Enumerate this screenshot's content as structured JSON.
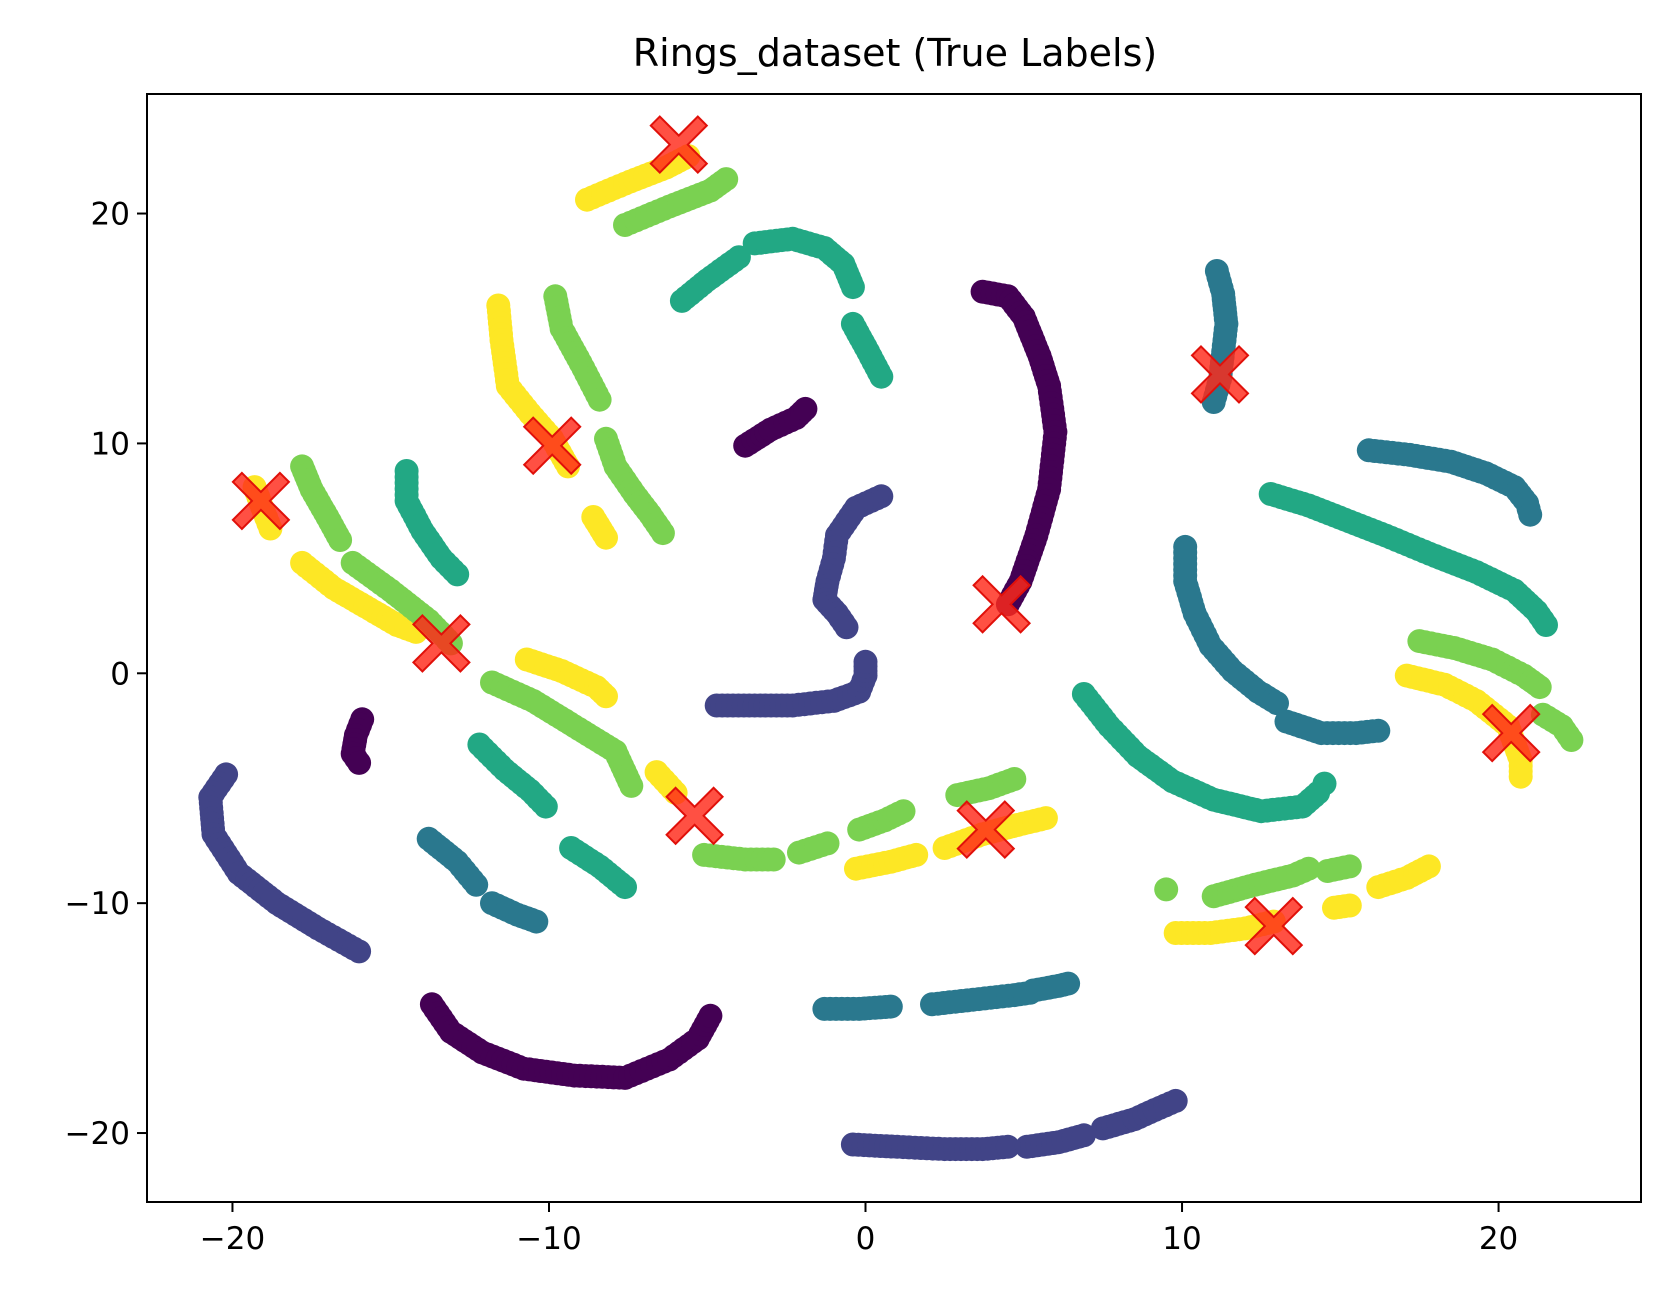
{
  "chart_data": {
    "type": "scatter",
    "title": "Rings_dataset (True Labels)",
    "xlabel": "",
    "ylabel": "",
    "xlim": [
      -22.7,
      24.5
    ],
    "ylim": [
      -23.0,
      25.2
    ],
    "xticks": [
      -20,
      -10,
      0,
      10,
      20
    ],
    "xtick_labels": [
      "−20",
      "−10",
      "0",
      "10",
      "20"
    ],
    "yticks": [
      -20,
      -10,
      0,
      10,
      20
    ],
    "ytick_labels": [
      "−20",
      "−10",
      "0",
      "10",
      "20"
    ],
    "grid": false,
    "legend": false,
    "class_colors": {
      "0": "#440154",
      "1": "#414487",
      "2": "#2a788e",
      "3": "#22a884",
      "4": "#7ad151",
      "5": "#fde725"
    },
    "center_marker": {
      "shape": "X",
      "color": "#ff2a1a"
    },
    "arcs": [
      {
        "class": 5,
        "points": [
          [
            -8.8,
            20.6
          ],
          [
            -7.6,
            21.3
          ],
          [
            -6.3,
            22.0
          ],
          [
            -5.6,
            22.5
          ]
        ]
      },
      {
        "class": 4,
        "points": [
          [
            -7.6,
            19.5
          ],
          [
            -6.2,
            20.3
          ],
          [
            -4.9,
            21.0
          ],
          [
            -4.4,
            21.5
          ]
        ]
      },
      {
        "class": 3,
        "points": [
          [
            -5.8,
            16.2
          ],
          [
            -5.0,
            17.1
          ],
          [
            -4.3,
            17.8
          ],
          [
            -4.0,
            18.1
          ]
        ]
      },
      {
        "class": 3,
        "points": [
          [
            -3.5,
            18.7
          ],
          [
            -2.3,
            18.9
          ],
          [
            -1.3,
            18.5
          ],
          [
            -0.7,
            17.8
          ],
          [
            -0.4,
            16.8
          ]
        ]
      },
      {
        "class": 3,
        "points": [
          [
            -0.4,
            15.2
          ],
          [
            0.0,
            14.2
          ],
          [
            0.5,
            12.9
          ]
        ]
      },
      {
        "class": 0,
        "points": [
          [
            -3.8,
            9.9
          ],
          [
            -3.0,
            10.6
          ],
          [
            -2.2,
            11.1
          ],
          [
            -1.9,
            11.5
          ]
        ]
      },
      {
        "class": 1,
        "points": [
          [
            0.5,
            7.7
          ],
          [
            -0.3,
            7.2
          ],
          [
            -0.9,
            6.0
          ],
          [
            -1.0,
            5.0
          ],
          [
            -1.2,
            4.0
          ],
          [
            -1.3,
            3.2
          ],
          [
            -0.9,
            2.6
          ],
          [
            -0.6,
            2.0
          ]
        ]
      },
      {
        "class": 1,
        "points": [
          [
            -4.7,
            -1.4
          ],
          [
            -3.5,
            -1.4
          ],
          [
            -2.3,
            -1.4
          ],
          [
            -1.0,
            -1.2
          ],
          [
            -0.2,
            -0.8
          ],
          [
            0.0,
            -0.1
          ],
          [
            0.0,
            0.5
          ]
        ]
      },
      {
        "class": 0,
        "points": [
          [
            3.7,
            16.6
          ],
          [
            4.5,
            16.4
          ],
          [
            5.0,
            15.5
          ],
          [
            5.5,
            13.8
          ],
          [
            5.8,
            12.5
          ],
          [
            6.0,
            10.5
          ],
          [
            5.8,
            8.0
          ],
          [
            5.4,
            6.0
          ],
          [
            4.9,
            4.0
          ],
          [
            4.5,
            3.0
          ]
        ]
      },
      {
        "class": 2,
        "points": [
          [
            11.1,
            17.5
          ],
          [
            11.3,
            16.5
          ],
          [
            11.4,
            15.2
          ],
          [
            11.3,
            14.0
          ],
          [
            11.2,
            12.8
          ],
          [
            11.0,
            11.8
          ]
        ]
      },
      {
        "class": 2,
        "points": [
          [
            15.9,
            9.7
          ],
          [
            17.2,
            9.5
          ],
          [
            18.5,
            9.2
          ],
          [
            19.6,
            8.7
          ],
          [
            20.5,
            8.1
          ],
          [
            20.9,
            7.4
          ],
          [
            21.0,
            6.9
          ]
        ]
      },
      {
        "class": 3,
        "points": [
          [
            12.8,
            7.8
          ],
          [
            14.0,
            7.3
          ],
          [
            15.3,
            6.6
          ],
          [
            16.6,
            5.9
          ],
          [
            18.0,
            5.1
          ],
          [
            19.3,
            4.4
          ],
          [
            20.5,
            3.6
          ],
          [
            21.2,
            2.7
          ],
          [
            21.5,
            2.1
          ]
        ]
      },
      {
        "class": 2,
        "points": [
          [
            10.1,
            5.5
          ],
          [
            10.1,
            4.0
          ],
          [
            10.4,
            2.6
          ],
          [
            10.9,
            1.2
          ],
          [
            11.6,
            0.1
          ],
          [
            12.4,
            -0.8
          ],
          [
            13.0,
            -1.3
          ]
        ]
      },
      {
        "class": 2,
        "points": [
          [
            13.3,
            -2.1
          ],
          [
            14.4,
            -2.6
          ],
          [
            15.5,
            -2.6
          ],
          [
            16.2,
            -2.5
          ]
        ]
      },
      {
        "class": 4,
        "points": [
          [
            17.5,
            1.4
          ],
          [
            18.6,
            1.1
          ],
          [
            19.8,
            0.6
          ],
          [
            20.8,
            -0.1
          ],
          [
            21.3,
            -0.6
          ]
        ]
      },
      {
        "class": 5,
        "points": [
          [
            17.1,
            -0.1
          ],
          [
            18.3,
            -0.5
          ],
          [
            19.3,
            -1.2
          ],
          [
            20.3,
            -2.3
          ],
          [
            20.7,
            -3.8
          ],
          [
            20.7,
            -4.5
          ]
        ]
      },
      {
        "class": 4,
        "points": [
          [
            21.4,
            -1.8
          ],
          [
            22.0,
            -2.3
          ],
          [
            22.3,
            -2.9
          ]
        ]
      },
      {
        "class": 3,
        "points": [
          [
            6.9,
            -0.9
          ],
          [
            7.7,
            -2.3
          ],
          [
            8.6,
            -3.6
          ],
          [
            9.7,
            -4.7
          ],
          [
            11.0,
            -5.5
          ],
          [
            12.5,
            -6.0
          ],
          [
            13.8,
            -5.8
          ],
          [
            14.3,
            -5.2
          ]
        ]
      },
      {
        "class": 3,
        "points": [
          [
            14.5,
            -4.8
          ]
        ]
      },
      {
        "class": 4,
        "points": [
          [
            9.5,
            -9.4
          ]
        ]
      },
      {
        "class": 4,
        "points": [
          [
            11.0,
            -9.7
          ],
          [
            12.3,
            -9.2
          ],
          [
            13.5,
            -8.8
          ],
          [
            14.0,
            -8.5
          ]
        ]
      },
      {
        "class": 4,
        "points": [
          [
            14.6,
            -8.6
          ],
          [
            15.3,
            -8.4
          ]
        ]
      },
      {
        "class": 5,
        "points": [
          [
            15.3,
            -10.1
          ],
          [
            14.8,
            -10.2
          ]
        ]
      },
      {
        "class": 5,
        "points": [
          [
            16.2,
            -9.3
          ],
          [
            17.1,
            -8.9
          ],
          [
            17.8,
            -8.4
          ]
        ]
      },
      {
        "class": 5,
        "points": [
          [
            9.8,
            -11.3
          ],
          [
            10.9,
            -11.3
          ],
          [
            12.0,
            -11.1
          ],
          [
            12.9,
            -10.8
          ]
        ]
      },
      {
        "class": 2,
        "points": [
          [
            -1.3,
            -14.6
          ],
          [
            -0.2,
            -14.6
          ],
          [
            0.8,
            -14.5
          ]
        ]
      },
      {
        "class": 2,
        "points": [
          [
            2.1,
            -14.4
          ],
          [
            3.4,
            -14.2
          ],
          [
            4.7,
            -14.0
          ],
          [
            5.2,
            -13.9
          ]
        ]
      },
      {
        "class": 2,
        "points": [
          [
            5.3,
            -13.8
          ],
          [
            6.1,
            -13.6
          ],
          [
            6.4,
            -13.5
          ]
        ]
      },
      {
        "class": 1,
        "points": [
          [
            -0.4,
            -20.5
          ],
          [
            1.0,
            -20.6
          ],
          [
            2.5,
            -20.7
          ],
          [
            3.7,
            -20.7
          ],
          [
            4.5,
            -20.6
          ]
        ]
      },
      {
        "class": 1,
        "points": [
          [
            5.1,
            -20.6
          ],
          [
            6.1,
            -20.4
          ],
          [
            6.9,
            -20.1
          ]
        ]
      },
      {
        "class": 1,
        "points": [
          [
            7.5,
            -19.8
          ],
          [
            8.5,
            -19.4
          ],
          [
            9.3,
            -18.9
          ],
          [
            9.8,
            -18.6
          ]
        ]
      },
      {
        "class": 0,
        "points": [
          [
            -13.7,
            -14.4
          ],
          [
            -13.1,
            -15.6
          ],
          [
            -12.1,
            -16.5
          ],
          [
            -10.8,
            -17.2
          ],
          [
            -9.2,
            -17.5
          ],
          [
            -7.6,
            -17.6
          ],
          [
            -6.2,
            -16.8
          ],
          [
            -5.3,
            -15.9
          ],
          [
            -4.9,
            -14.9
          ]
        ]
      },
      {
        "class": 1,
        "points": [
          [
            -20.2,
            -4.4
          ],
          [
            -20.7,
            -5.4
          ],
          [
            -20.6,
            -7.0
          ],
          [
            -19.8,
            -8.7
          ],
          [
            -18.6,
            -10.0
          ],
          [
            -17.3,
            -11.1
          ],
          [
            -16.0,
            -12.1
          ]
        ]
      },
      {
        "class": 0,
        "points": [
          [
            -15.9,
            -2.0
          ],
          [
            -16.1,
            -2.7
          ],
          [
            -16.2,
            -3.5
          ],
          [
            -16.0,
            -3.9
          ]
        ]
      },
      {
        "class": 2,
        "points": [
          [
            -13.8,
            -7.2
          ],
          [
            -12.9,
            -8.2
          ],
          [
            -12.3,
            -9.2
          ]
        ]
      },
      {
        "class": 2,
        "points": [
          [
            -11.8,
            -10.0
          ],
          [
            -11.0,
            -10.5
          ],
          [
            -10.4,
            -10.8
          ]
        ]
      },
      {
        "class": 3,
        "points": [
          [
            -12.2,
            -3.1
          ],
          [
            -11.4,
            -4.2
          ],
          [
            -10.6,
            -5.1
          ],
          [
            -10.1,
            -5.8
          ]
        ]
      },
      {
        "class": 3,
        "points": [
          [
            -9.3,
            -7.6
          ],
          [
            -8.4,
            -8.4
          ],
          [
            -7.6,
            -9.3
          ]
        ]
      },
      {
        "class": 4,
        "points": [
          [
            -11.8,
            -0.4
          ],
          [
            -10.5,
            -1.2
          ],
          [
            -9.2,
            -2.3
          ],
          [
            -7.9,
            -3.4
          ],
          [
            -7.4,
            -4.9
          ]
        ]
      },
      {
        "class": 5,
        "points": [
          [
            -10.7,
            0.6
          ],
          [
            -9.6,
            0.1
          ],
          [
            -8.5,
            -0.6
          ],
          [
            -8.2,
            -1.0
          ]
        ]
      },
      {
        "class": 5,
        "points": [
          [
            -6.6,
            -4.3
          ],
          [
            -6.0,
            -5.2
          ]
        ]
      },
      {
        "class": 4,
        "points": [
          [
            -5.1,
            -7.9
          ],
          [
            -3.8,
            -8.1
          ],
          [
            -2.9,
            -8.1
          ]
        ]
      },
      {
        "class": 4,
        "points": [
          [
            -2.1,
            -7.8
          ],
          [
            -1.2,
            -7.4
          ]
        ]
      },
      {
        "class": 4,
        "points": [
          [
            -0.2,
            -6.8
          ],
          [
            0.6,
            -6.4
          ],
          [
            1.2,
            -6.0
          ]
        ]
      },
      {
        "class": 5,
        "points": [
          [
            -0.3,
            -8.5
          ],
          [
            0.8,
            -8.2
          ],
          [
            1.6,
            -7.9
          ]
        ]
      },
      {
        "class": 5,
        "points": [
          [
            2.5,
            -7.6
          ],
          [
            3.7,
            -7.0
          ],
          [
            4.8,
            -6.6
          ],
          [
            5.7,
            -6.3
          ]
        ]
      },
      {
        "class": 4,
        "points": [
          [
            2.9,
            -5.3
          ],
          [
            3.9,
            -5.0
          ],
          [
            4.7,
            -4.6
          ]
        ]
      },
      {
        "class": 4,
        "points": [
          [
            -17.8,
            9.0
          ],
          [
            -17.5,
            8.0
          ],
          [
            -17.0,
            6.8
          ],
          [
            -16.6,
            5.8
          ]
        ]
      },
      {
        "class": 5,
        "points": [
          [
            -19.3,
            8.1
          ],
          [
            -19.0,
            7.0
          ],
          [
            -18.8,
            6.3
          ]
        ]
      },
      {
        "class": 5,
        "points": [
          [
            -17.8,
            4.8
          ],
          [
            -16.8,
            3.7
          ],
          [
            -15.8,
            2.9
          ],
          [
            -14.8,
            2.1
          ],
          [
            -14.2,
            1.8
          ]
        ]
      },
      {
        "class": 4,
        "points": [
          [
            -16.2,
            4.8
          ],
          [
            -15.0,
            3.6
          ],
          [
            -13.8,
            2.3
          ],
          [
            -13.1,
            1.3
          ]
        ]
      },
      {
        "class": 3,
        "points": [
          [
            -14.5,
            8.8
          ],
          [
            -14.5,
            7.5
          ],
          [
            -14.0,
            6.2
          ],
          [
            -13.4,
            5.0
          ],
          [
            -12.9,
            4.3
          ]
        ]
      },
      {
        "class": 5,
        "points": [
          [
            -11.6,
            16.0
          ],
          [
            -11.5,
            14.5
          ],
          [
            -11.3,
            12.5
          ],
          [
            -10.6,
            11.3
          ],
          [
            -9.9,
            10.2
          ],
          [
            -9.4,
            9.0
          ]
        ]
      },
      {
        "class": 4,
        "points": [
          [
            -9.8,
            16.4
          ],
          [
            -9.6,
            15.0
          ],
          [
            -9.0,
            13.5
          ],
          [
            -8.4,
            11.9
          ]
        ]
      },
      {
        "class": 4,
        "points": [
          [
            -8.2,
            10.2
          ],
          [
            -7.9,
            9.0
          ],
          [
            -7.3,
            7.8
          ],
          [
            -6.8,
            6.9
          ],
          [
            -6.4,
            6.1
          ]
        ]
      },
      {
        "class": 5,
        "points": [
          [
            -8.6,
            6.8
          ],
          [
            -8.2,
            5.9
          ]
        ]
      }
    ],
    "cluster_centers": [
      [
        -5.9,
        23.0
      ],
      [
        -9.9,
        9.9
      ],
      [
        -19.1,
        7.5
      ],
      [
        -13.4,
        1.3
      ],
      [
        -5.4,
        -6.2
      ],
      [
        3.8,
        -6.8
      ],
      [
        4.3,
        3.0
      ],
      [
        11.2,
        13.0
      ],
      [
        20.4,
        -2.6
      ],
      [
        12.9,
        -11.0
      ]
    ]
  }
}
